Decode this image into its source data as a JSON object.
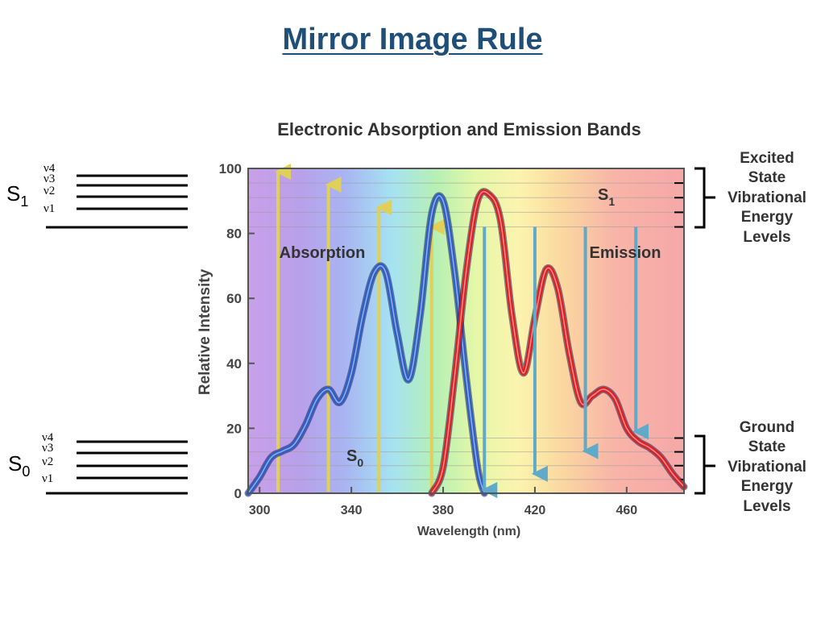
{
  "slide": {
    "title": "Mirror Image Rule"
  },
  "energy_diagram": {
    "upper_state": {
      "label": "S",
      "subscript": "1",
      "levels": [
        "ν4",
        "ν3",
        "ν2",
        "ν1"
      ]
    },
    "lower_state": {
      "label": "S",
      "subscript": "0",
      "levels": [
        "ν4",
        "ν3",
        "ν2",
        "ν1"
      ]
    }
  },
  "chart_data": {
    "type": "line",
    "title": "Electronic Absorption and Emission Bands",
    "xlabel": "Wavelength (nm)",
    "ylabel": "Relative Intensity",
    "xlim": [
      295,
      485
    ],
    "ylim": [
      0,
      100
    ],
    "x_ticks": [
      300,
      340,
      380,
      420,
      460
    ],
    "y_ticks": [
      0,
      20,
      40,
      60,
      80,
      100
    ],
    "series": [
      {
        "name": "Absorption",
        "color": "#2b5fc9",
        "x": [
          295,
          300,
          305,
          310,
          315,
          320,
          325,
          330,
          335,
          340,
          345,
          350,
          355,
          360,
          365,
          370,
          375,
          380,
          385,
          390,
          395,
          398
        ],
        "y": [
          0,
          5,
          11,
          13,
          15,
          21,
          29,
          32,
          28,
          37,
          55,
          68,
          68,
          49,
          35,
          55,
          86,
          90,
          68,
          36,
          8,
          0
        ]
      },
      {
        "name": "Emission",
        "color": "#e02020",
        "x": [
          375,
          380,
          385,
          390,
          395,
          400,
          405,
          410,
          415,
          420,
          425,
          430,
          435,
          440,
          445,
          450,
          455,
          460,
          465,
          470,
          475,
          480,
          485
        ],
        "y": [
          0,
          8,
          36,
          68,
          90,
          92,
          84,
          55,
          37,
          54,
          69,
          63,
          43,
          28,
          30,
          32,
          29,
          20,
          16,
          14,
          11,
          6,
          2
        ]
      }
    ],
    "absorption_arrows_x": [
      308,
      330,
      352,
      375
    ],
    "absorption_arrows_top": [
      99,
      95,
      88,
      82
    ],
    "emission_arrows_x": [
      398,
      420,
      442,
      464
    ],
    "emission_arrows_bottom": [
      0,
      5,
      12,
      18
    ],
    "arrow_start_y": 82,
    "upper_band_y": [
      82,
      100
    ],
    "lower_band_y": [
      0,
      17
    ],
    "annotations": {
      "absorption": "Absorption",
      "emission": "Emission",
      "s1_label": "S",
      "s1_sub": "1",
      "s0_label": "S",
      "s0_sub": "0",
      "excited_bracket": [
        "Excited",
        "State",
        "Vibrational",
        "Energy",
        "Levels"
      ],
      "ground_bracket": [
        "Ground",
        "State",
        "Vibrational",
        "Energy",
        "Levels"
      ]
    },
    "colors": {
      "arrow_absorption": "#e0d05a",
      "arrow_emission": "#5fa9c9"
    }
  }
}
